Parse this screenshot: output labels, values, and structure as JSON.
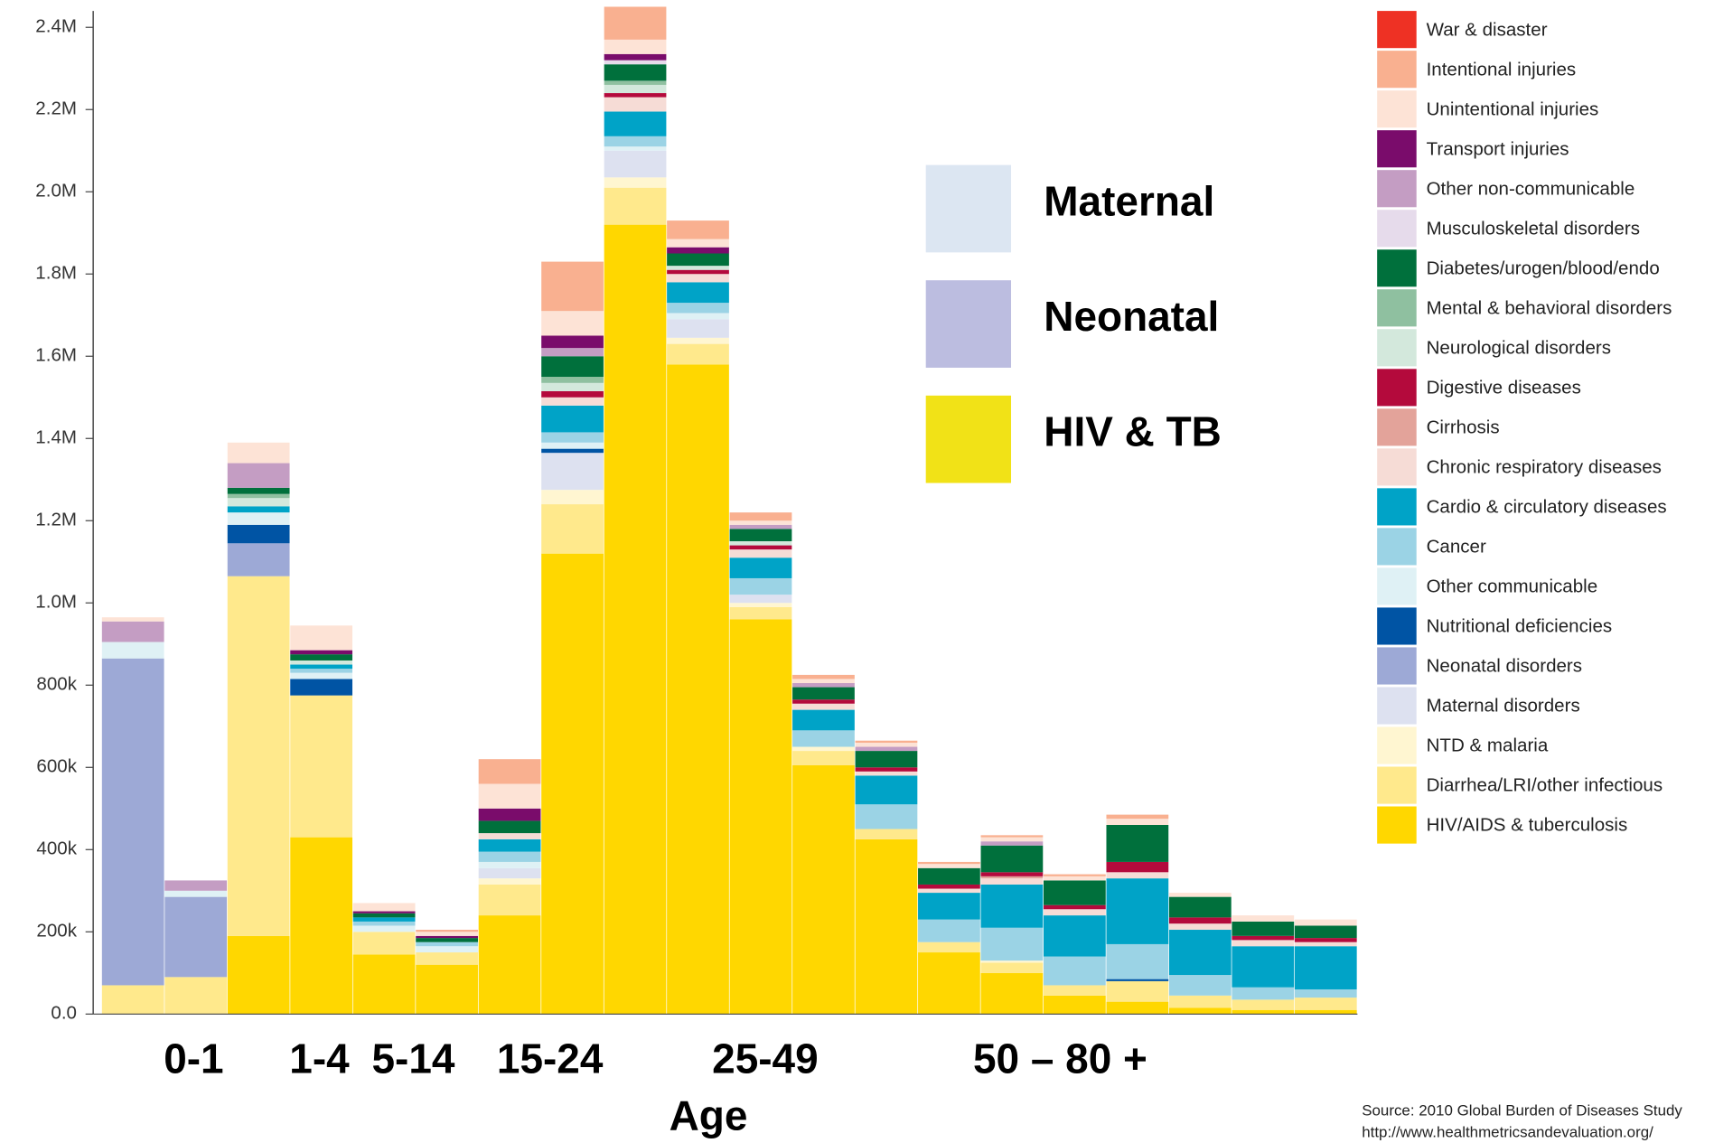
{
  "chart_data": {
    "type": "bar",
    "stacked": true,
    "categories": [
      null,
      null,
      null,
      null,
      null,
      null,
      null,
      null,
      null,
      null,
      null,
      null,
      null,
      null,
      null,
      null,
      null,
      null,
      null,
      null
    ],
    "series": [
      {
        "name": "War & disaster",
        "color": "#ee3124",
        "values": [
          0,
          0,
          0,
          0,
          0,
          0,
          0,
          0,
          0,
          0,
          0,
          0,
          0,
          0,
          0,
          0,
          0,
          0,
          0,
          0
        ]
      },
      {
        "name": "Intentional injuries",
        "color": "#f9b090",
        "values": [
          0,
          0,
          0,
          0,
          0,
          5000,
          60000,
          120000,
          80000,
          45000,
          20000,
          10000,
          5000,
          5000,
          5000,
          5000,
          10000,
          0,
          0,
          0
        ]
      },
      {
        "name": "Unintentional injuries",
        "color": "#fde3d6",
        "values": [
          10000,
          0,
          50000,
          60000,
          20000,
          10000,
          60000,
          60000,
          35000,
          20000,
          10000,
          10000,
          10000,
          10000,
          10000,
          10000,
          15000,
          10000,
          15000,
          15000
        ]
      },
      {
        "name": "Transport injuries",
        "color": "#7a0c6b",
        "values": [
          0,
          0,
          0,
          10000,
          5000,
          5000,
          30000,
          30000,
          15000,
          15000,
          0,
          0,
          0,
          0,
          0,
          0,
          0,
          0,
          0,
          0
        ]
      },
      {
        "name": "Other non-communicable",
        "color": "#c49dc3",
        "values": [
          50000,
          25000,
          60000,
          0,
          0,
          0,
          0,
          20000,
          0,
          0,
          10000,
          10000,
          10000,
          0,
          10000,
          0,
          0,
          0,
          0,
          0
        ]
      },
      {
        "name": "Musculoskeletal disorders",
        "color": "#e6dbeb",
        "values": [
          0,
          0,
          0,
          0,
          0,
          0,
          0,
          0,
          10000,
          0,
          0,
          0,
          0,
          0,
          0,
          0,
          0,
          0,
          0,
          0
        ]
      },
      {
        "name": "Diabetes/urogen/blood/endo",
        "color": "#00703c",
        "values": [
          0,
          0,
          15000,
          15000,
          10000,
          10000,
          30000,
          50000,
          40000,
          30000,
          30000,
          30000,
          40000,
          40000,
          65000,
          60000,
          90000,
          50000,
          35000,
          30000
        ]
      },
      {
        "name": "Mental & behavioral disorders",
        "color": "#8fc0a0",
        "values": [
          0,
          0,
          10000,
          0,
          0,
          0,
          0,
          15000,
          10000,
          0,
          0,
          0,
          0,
          0,
          0,
          0,
          0,
          0,
          0,
          0
        ]
      },
      {
        "name": "Neurological disorders",
        "color": "#d3e8dc",
        "values": [
          0,
          0,
          20000,
          10000,
          0,
          0,
          0,
          20000,
          20000,
          10000,
          10000,
          0,
          0,
          0,
          0,
          0,
          0,
          0,
          0,
          0
        ]
      },
      {
        "name": "Digestive diseases",
        "color": "#b40a3c",
        "values": [
          0,
          0,
          0,
          0,
          0,
          0,
          0,
          15000,
          10000,
          10000,
          10000,
          10000,
          10000,
          10000,
          10000,
          10000,
          25000,
          15000,
          10000,
          10000
        ]
      },
      {
        "name": "Cirrhosis",
        "color": "#e3a39a",
        "values": [
          0,
          0,
          0,
          0,
          0,
          0,
          0,
          0,
          0,
          0,
          0,
          0,
          0,
          0,
          5000,
          0,
          0,
          0,
          0,
          0
        ]
      },
      {
        "name": "Chronic respiratory diseases",
        "color": "#f6dcd6",
        "values": [
          0,
          0,
          0,
          0,
          0,
          0,
          15000,
          20000,
          35000,
          20000,
          20000,
          15000,
          10000,
          10000,
          15000,
          15000,
          15000,
          15000,
          15000,
          10000
        ]
      },
      {
        "name": "Cardio & circulatory diseases",
        "color": "#00a3c7",
        "values": [
          0,
          0,
          15000,
          10000,
          10000,
          0,
          30000,
          65000,
          60000,
          50000,
          50000,
          50000,
          70000,
          65000,
          105000,
          100000,
          160000,
          110000,
          100000,
          105000
        ]
      },
      {
        "name": "Cancer",
        "color": "#9bd3e5",
        "values": [
          0,
          0,
          0,
          10000,
          10000,
          10000,
          25000,
          25000,
          25000,
          25000,
          40000,
          40000,
          60000,
          55000,
          80000,
          70000,
          85000,
          50000,
          30000,
          20000
        ]
      },
      {
        "name": "Other communicable",
        "color": "#dff1f5",
        "values": [
          40000,
          15000,
          30000,
          15000,
          15000,
          15000,
          15000,
          15000,
          10000,
          15000,
          0,
          0,
          0,
          0,
          0,
          0,
          0,
          0,
          0,
          0
        ]
      },
      {
        "name": "Nutritional deficiencies",
        "color": "#0054a4",
        "values": [
          0,
          0,
          45000,
          40000,
          0,
          0,
          0,
          10000,
          0,
          0,
          0,
          0,
          0,
          0,
          0,
          0,
          5000,
          0,
          0,
          0
        ]
      },
      {
        "name": "Neonatal disorders",
        "color": "#9da9d6",
        "values": [
          795000,
          195000,
          80000,
          0,
          0,
          0,
          0,
          0,
          0,
          0,
          0,
          0,
          0,
          0,
          0,
          0,
          0,
          0,
          0,
          0
        ]
      },
      {
        "name": "Maternal disorders",
        "color": "#dde1f0",
        "values": [
          0,
          0,
          0,
          0,
          0,
          0,
          25000,
          90000,
          65000,
          45000,
          20000,
          0,
          0,
          0,
          0,
          0,
          0,
          0,
          0,
          0
        ]
      },
      {
        "name": "NTD & malaria",
        "color": "#fff6d1",
        "values": [
          0,
          0,
          0,
          0,
          0,
          0,
          15000,
          35000,
          25000,
          15000,
          10000,
          10000,
          0,
          0,
          5000,
          0,
          0,
          0,
          0,
          0
        ]
      },
      {
        "name": "Diarrhea/LRI/other infectious",
        "color": "#ffe98c",
        "values": [
          70000,
          90000,
          875000,
          345000,
          55000,
          30000,
          75000,
          120000,
          90000,
          50000,
          30000,
          35000,
          25000,
          25000,
          25000,
          25000,
          50000,
          30000,
          25000,
          30000
        ]
      },
      {
        "name": "HIV/AIDS & tuberculosis",
        "color": "#ffd700",
        "values": [
          0,
          0,
          190000,
          430000,
          145000,
          120000,
          240000,
          1120000,
          1920000,
          1580000,
          960000,
          605000,
          425000,
          150000,
          100000,
          45000,
          30000,
          15000,
          10000,
          10000
        ]
      }
    ],
    "ylim": [
      0,
      2400000
    ],
    "yticks": [
      {
        "value": 0,
        "label": "0.0"
      },
      {
        "value": 200000,
        "label": "200k"
      },
      {
        "value": 400000,
        "label": "400k"
      },
      {
        "value": 600000,
        "label": "600k"
      },
      {
        "value": 800000,
        "label": "800k"
      },
      {
        "value": 1000000,
        "label": "1.0M"
      },
      {
        "value": 1200000,
        "label": "1.2M"
      },
      {
        "value": 1400000,
        "label": "1.4M"
      },
      {
        "value": 1600000,
        "label": "1.6M"
      },
      {
        "value": 1800000,
        "label": "1.8M"
      },
      {
        "value": 2000000,
        "label": "2.0M"
      },
      {
        "value": 2200000,
        "label": "2.2M"
      },
      {
        "value": 2400000,
        "label": "2.4M"
      }
    ],
    "x_label": "Age",
    "age_groups": [
      "0-1",
      "1-4",
      "5-14",
      "15-24",
      "25-49",
      "50 – 80 +"
    ],
    "highlight_legend": [
      {
        "label": "Maternal",
        "color": "#dce6f2"
      },
      {
        "label": "Neonatal",
        "color": "#bcbde0"
      },
      {
        "label": "HIV & TB",
        "color": "#f1e217"
      }
    ],
    "source": [
      "Source: 2010 Global Burden of Diseases Study",
      "http://www.healthmetricsandevaluation.org/"
    ]
  }
}
